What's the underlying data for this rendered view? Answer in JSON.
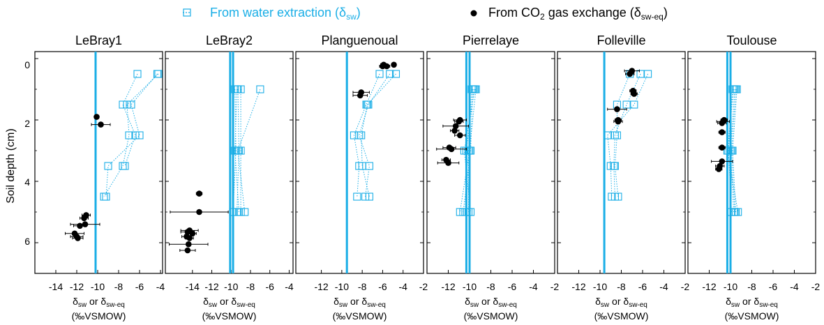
{
  "legend": {
    "water_label": "From water extraction (δ",
    "water_sub": "sw",
    "water_close": ")",
    "co2_label_a": "From CO",
    "co2_label_sub": "2",
    "co2_label_b": " gas exchange (δ",
    "co2_sub": "sw-eq",
    "co2_close": ")"
  },
  "colors": {
    "water": "#1aaee6",
    "co2": "#000000",
    "axis": "#000000"
  },
  "y_axis": {
    "label": "Soil depth (cm)",
    "ylim": [
      0,
      7
    ],
    "ticks": [
      0,
      2,
      4,
      6
    ],
    "inverted": true
  },
  "x_label": {
    "line1_a": "δ",
    "line1_sub1": "sw",
    "line1_mid": " or δ",
    "line1_sub2": "sw-eq",
    "line2": "(‰VSMOW)"
  },
  "chart_data": [
    {
      "type": "scatter",
      "title": "LeBray1",
      "xlim": [
        -16,
        -3.8
      ],
      "xticks": [
        -14,
        -12,
        -10,
        -8,
        -6,
        -4
      ],
      "vlines": [
        -10.2
      ],
      "water_profiles": [
        [
          [
            -6.2,
            0.5
          ],
          [
            -7.6,
            1.5
          ],
          [
            -6.4,
            2.5
          ],
          [
            -7.4,
            3.5
          ]
        ],
        [
          [
            -4.2,
            0.5
          ],
          [
            -7.2,
            1.5
          ],
          [
            -7.0,
            2.5
          ],
          [
            -7.6,
            3.5
          ],
          [
            -9.4,
            4.5
          ]
        ],
        [
          [
            -4.3,
            0.5
          ],
          [
            -6.8,
            1.5
          ],
          [
            -6.0,
            2.5
          ],
          [
            -9.0,
            3.5
          ],
          [
            -9.2,
            4.5
          ]
        ]
      ],
      "co2_points": [
        {
          "x": -10.1,
          "y": 1.9,
          "xerr": 0.2
        },
        {
          "x": -9.7,
          "y": 2.15,
          "xerr": 0.9
        },
        {
          "x": -11.1,
          "y": 5.1,
          "xerr": 0.4
        },
        {
          "x": -11.3,
          "y": 5.2,
          "xerr": 0.4
        },
        {
          "x": -11.2,
          "y": 5.4,
          "xerr": 1.4
        },
        {
          "x": -11.7,
          "y": 5.45,
          "xerr": 0.6
        },
        {
          "x": -12.2,
          "y": 5.7,
          "xerr": 0.9
        },
        {
          "x": -12.0,
          "y": 5.8,
          "xerr": 0.6
        },
        {
          "x": -11.9,
          "y": 5.85,
          "xerr": 0.5
        }
      ]
    },
    {
      "type": "scatter",
      "title": "LeBray2",
      "xlim": [
        -16.8,
        -3.6
      ],
      "xticks": [
        -14,
        -12,
        -10,
        -8,
        -6,
        -4
      ],
      "vlines": [
        -10.1,
        -9.8
      ],
      "water_profiles": [
        [
          [
            -7.0,
            1.0
          ],
          [
            -9.3,
            3.0
          ],
          [
            -8.6,
            5.0
          ]
        ],
        [
          [
            -9.0,
            1.0
          ],
          [
            -9.0,
            3.0
          ],
          [
            -9.0,
            5.0
          ]
        ],
        [
          [
            -9.3,
            1.0
          ],
          [
            -9.2,
            3.0
          ],
          [
            -9.4,
            5.0
          ]
        ],
        [
          [
            -9.6,
            1.0
          ],
          [
            -9.5,
            3.0
          ],
          [
            -9.8,
            5.0
          ]
        ],
        [
          [
            -9.4,
            1.0
          ],
          [
            -9.6,
            3.0
          ],
          [
            -9.2,
            5.0
          ]
        ]
      ],
      "co2_points": [
        {
          "x": -13.3,
          "y": 4.4,
          "xerr": 0.3
        },
        {
          "x": -13.3,
          "y": 5.0,
          "xerr": 3.0
        },
        {
          "x": -14.3,
          "y": 5.6,
          "xerr": 0.9
        },
        {
          "x": -14.5,
          "y": 5.65,
          "xerr": 0.7
        },
        {
          "x": -14.0,
          "y": 5.7,
          "xerr": 0.4
        },
        {
          "x": -14.6,
          "y": 5.8,
          "xerr": 0.5
        },
        {
          "x": -14.3,
          "y": 5.85,
          "xerr": 0.4
        },
        {
          "x": -14.4,
          "y": 6.05,
          "xerr": 2.0
        },
        {
          "x": -14.5,
          "y": 6.25,
          "xerr": 0.8
        }
      ]
    },
    {
      "type": "scatter",
      "title": "Planguenoual",
      "xlim": [
        -14.5,
        -2
      ],
      "xticks": [
        -12,
        -10,
        -8,
        -6,
        -4,
        -2
      ],
      "vlines": [
        -9.5
      ],
      "water_profiles": [
        [
          [
            -6.3,
            0.5
          ],
          [
            -7.6,
            1.5
          ],
          [
            -8.8,
            2.5
          ],
          [
            -8.3,
            3.5
          ],
          [
            -8.5,
            4.5
          ]
        ],
        [
          [
            -5.3,
            0.5
          ],
          [
            -7.4,
            1.5
          ],
          [
            -8.3,
            2.5
          ],
          [
            -7.3,
            3.5
          ],
          [
            -7.7,
            4.5
          ]
        ],
        [
          [
            -4.7,
            0.5
          ],
          [
            -7.5,
            1.5
          ],
          [
            -8.1,
            2.5
          ],
          [
            -8.0,
            3.5
          ],
          [
            -7.3,
            4.5
          ]
        ]
      ],
      "co2_points": [
        {
          "x": -5.9,
          "y": 0.2,
          "xerr": 0.3
        },
        {
          "x": -5.6,
          "y": 0.25,
          "xerr": 0.3
        },
        {
          "x": -4.9,
          "y": 0.2,
          "xerr": 0.2
        },
        {
          "x": -6.0,
          "y": 0.25,
          "xerr": 0.3
        },
        {
          "x": -8.1,
          "y": 1.1,
          "xerr": 0.8
        },
        {
          "x": -8.2,
          "y": 1.2,
          "xerr": 0.7
        }
      ]
    },
    {
      "type": "scatter",
      "title": "Pierrelaye",
      "xlim": [
        -14,
        -2
      ],
      "xticks": [
        -12,
        -10,
        -8,
        -6,
        -4,
        -2
      ],
      "vlines": [
        -10.3,
        -10.0
      ],
      "water_profiles": [
        [
          [
            -9.4,
            1.0
          ],
          [
            -10.0,
            3.0
          ],
          [
            -10.9,
            5.0
          ]
        ],
        [
          [
            -9.6,
            1.0
          ],
          [
            -10.3,
            3.0
          ],
          [
            -10.4,
            5.0
          ]
        ],
        [
          [
            -9.8,
            1.0
          ],
          [
            -10.1,
            3.0
          ],
          [
            -10.1,
            5.0
          ]
        ],
        [
          [
            -9.5,
            1.0
          ],
          [
            -10.5,
            3.0
          ],
          [
            -9.9,
            5.0
          ]
        ],
        [
          [
            -9.7,
            1.0
          ],
          [
            -9.9,
            3.0
          ],
          [
            -10.6,
            5.0
          ]
        ]
      ],
      "co2_points": [
        {
          "x": -10.9,
          "y": 2.0,
          "xerr": 0.6
        },
        {
          "x": -11.0,
          "y": 2.05,
          "xerr": 0.4
        },
        {
          "x": -11.3,
          "y": 2.2,
          "xerr": 1.2
        },
        {
          "x": -11.4,
          "y": 2.35,
          "xerr": 0.4
        },
        {
          "x": -10.9,
          "y": 2.5,
          "xerr": 0.5
        },
        {
          "x": -11.9,
          "y": 2.9,
          "xerr": 0.6
        },
        {
          "x": -11.7,
          "y": 2.95,
          "xerr": 1.4
        },
        {
          "x": -12.2,
          "y": 3.3,
          "xerr": 0.4
        },
        {
          "x": -12.0,
          "y": 3.4,
          "xerr": 1.0
        }
      ]
    },
    {
      "type": "scatter",
      "title": "Folleville",
      "xlim": [
        -14,
        -2
      ],
      "xticks": [
        -12,
        -10,
        -8,
        -6,
        -4,
        -2
      ],
      "vlines": [
        -9.6
      ],
      "water_profiles": [
        [
          [
            -7.2,
            0.5
          ],
          [
            -8.4,
            1.5
          ],
          [
            -8.4,
            2.5
          ],
          [
            -8.6,
            3.5
          ],
          [
            -8.3,
            4.5
          ]
        ],
        [
          [
            -6.2,
            0.5
          ],
          [
            -7.5,
            1.5
          ],
          [
            -8.6,
            2.5
          ],
          [
            -8.7,
            3.5
          ],
          [
            -8.6,
            4.5
          ]
        ],
        [
          [
            -5.5,
            0.5
          ],
          [
            -6.8,
            1.5
          ],
          [
            -9.3,
            2.5
          ],
          [
            -9.0,
            3.5
          ],
          [
            -8.9,
            4.5
          ]
        ]
      ],
      "co2_points": [
        {
          "x": -7.0,
          "y": 0.4,
          "xerr": 0.7
        },
        {
          "x": -7.2,
          "y": 0.5,
          "xerr": 0.4
        },
        {
          "x": -6.9,
          "y": 1.05,
          "xerr": 0.3
        },
        {
          "x": -6.8,
          "y": 1.15,
          "xerr": 0.3
        },
        {
          "x": -8.4,
          "y": 1.65,
          "xerr": 0.9
        },
        {
          "x": -8.3,
          "y": 2.0,
          "xerr": 0.3
        },
        {
          "x": -8.3,
          "y": 2.05,
          "xerr": 0.4
        }
      ]
    },
    {
      "type": "scatter",
      "title": "Toulouse",
      "xlim": [
        -14,
        -2
      ],
      "xticks": [
        -12,
        -10,
        -8,
        -6,
        -4,
        -2
      ],
      "vlines": [
        -10.3,
        -10.0
      ],
      "water_profiles": [
        [
          [
            -9.6,
            1.0
          ],
          [
            -10.0,
            3.0
          ],
          [
            -9.7,
            5.0
          ]
        ],
        [
          [
            -9.8,
            1.0
          ],
          [
            -10.2,
            3.0
          ],
          [
            -9.9,
            5.0
          ]
        ],
        [
          [
            -9.4,
            1.0
          ],
          [
            -9.8,
            3.0
          ],
          [
            -9.5,
            5.0
          ]
        ],
        [
          [
            -9.7,
            1.0
          ],
          [
            -10.3,
            3.0
          ],
          [
            -9.3,
            5.0
          ]
        ],
        [
          [
            -9.5,
            1.0
          ],
          [
            -9.9,
            3.0
          ],
          [
            -9.6,
            5.0
          ]
        ]
      ],
      "co2_points": [
        {
          "x": -10.6,
          "y": 2.0,
          "xerr": 0.3
        },
        {
          "x": -10.7,
          "y": 2.05,
          "xerr": 0.6
        },
        {
          "x": -10.8,
          "y": 2.1,
          "xerr": 0.4
        },
        {
          "x": -10.8,
          "y": 2.4,
          "xerr": 0.3
        },
        {
          "x": -10.8,
          "y": 2.9,
          "xerr": 0.3
        },
        {
          "x": -10.8,
          "y": 3.35,
          "xerr": 1.0
        },
        {
          "x": -11.0,
          "y": 3.5,
          "xerr": 0.4
        },
        {
          "x": -11.1,
          "y": 3.6,
          "xerr": 0.3
        }
      ]
    }
  ]
}
